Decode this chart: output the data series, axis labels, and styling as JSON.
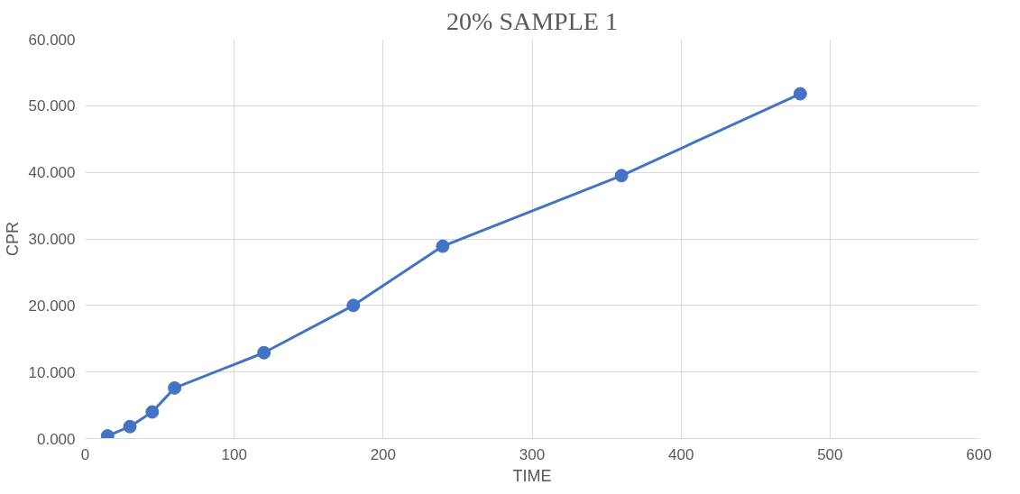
{
  "chart_data": {
    "type": "line",
    "title": "20% SAMPLE 1",
    "xlabel": "TIME",
    "ylabel": "CPR",
    "x": [
      15,
      30,
      45,
      60,
      120,
      180,
      240,
      360,
      480
    ],
    "series": [
      {
        "color": "#4472c4",
        "values": [
          0.4,
          1.8,
          4.0,
          7.6,
          12.9,
          20.0,
          28.9,
          39.5,
          51.8
        ]
      }
    ],
    "xlim": [
      0,
      600
    ],
    "xticks": [
      0,
      100,
      200,
      300,
      400,
      500,
      600
    ],
    "ylim": [
      0,
      60
    ],
    "yticks": [
      {
        "value": 0,
        "label": "0.000"
      },
      {
        "value": 10,
        "label": "10.000"
      },
      {
        "value": 20,
        "label": "20.000"
      },
      {
        "value": 30,
        "label": "30.000"
      },
      {
        "value": 40,
        "label": "40.000"
      },
      {
        "value": 50,
        "label": "50.000"
      },
      {
        "value": 60,
        "label": "60.000"
      }
    ],
    "grid": true,
    "marker": "circle",
    "line_style": "solid"
  }
}
